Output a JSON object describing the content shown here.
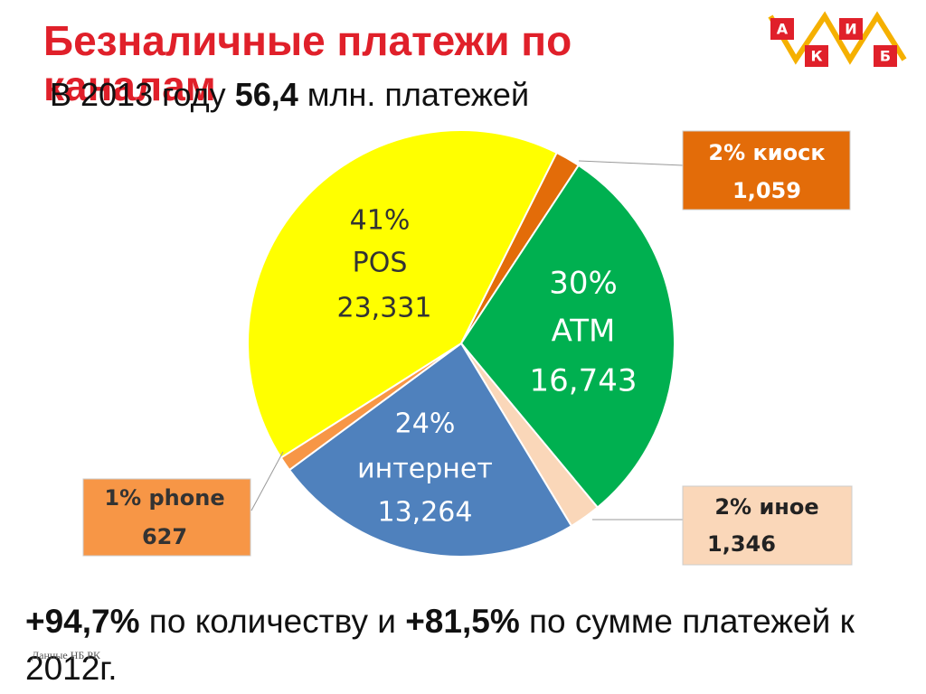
{
  "title": "Безналичные платежи по каналам",
  "subtitle": [
    "В 2013 году ",
    "56,4",
    " млн. платежей"
  ],
  "bottom": [
    "+94,7%",
    " по количеству и ",
    "+81,5%",
    " по сумме платежей к 2012г."
  ],
  "source": "Данные НБ РК",
  "logo": [
    "А",
    "И",
    "К",
    "Б"
  ],
  "chart_data": {
    "type": "pie",
    "categories": [
      "киоск",
      "ATM",
      "иное",
      "интернет",
      "phone",
      "POS"
    ],
    "values": [
      1059,
      16743,
      1346,
      13264,
      627,
      23331
    ],
    "value_labels": [
      "1,059",
      "16,743",
      "1,346",
      "13,264",
      "627",
      "23,331"
    ],
    "percent_labels": [
      "2%",
      "30%",
      "2%",
      "24%",
      "1%",
      "41%"
    ],
    "colors": [
      "#e36c09",
      "#00b050",
      "#fad7b9",
      "#4f81bd",
      "#f79646",
      "#ffff00"
    ]
  }
}
